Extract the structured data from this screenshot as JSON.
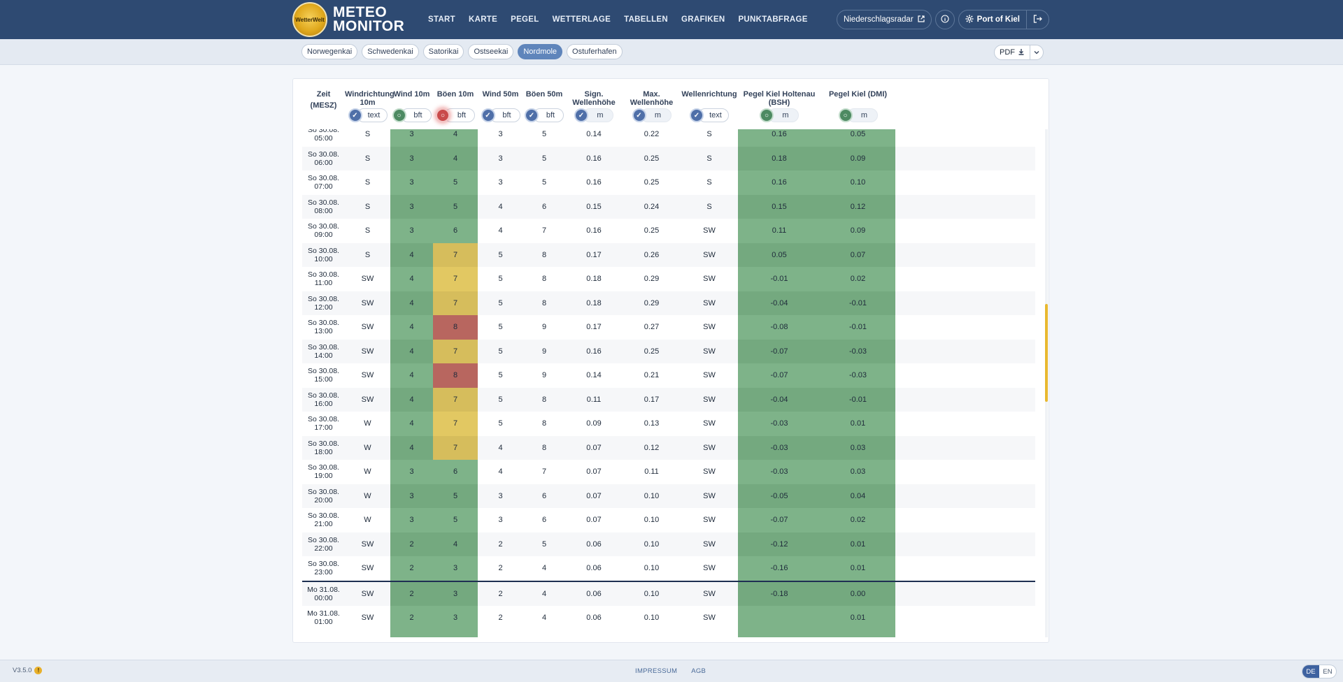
{
  "header": {
    "logo_text": "WetterWelt",
    "brand_line1": "METEO",
    "brand_line2": "MONITOR",
    "nav": [
      "START",
      "KARTE",
      "PEGEL",
      "WETTERLAGE",
      "TABELLEN",
      "GRAFIKEN",
      "PUNKTABFRAGE"
    ],
    "radar_label": "Niederschlagsradar",
    "account_label": "Port of Kiel"
  },
  "locations": {
    "tabs": [
      "Norwegenkai",
      "Schwedenkai",
      "Satorikai",
      "Ostseekai",
      "Nordmole",
      "Ostuferhafen"
    ],
    "active": "Nordmole"
  },
  "export": {
    "label": "PDF"
  },
  "table": {
    "time_header_line1": "Zeit",
    "time_header_line2": "(MESZ)",
    "columns": [
      {
        "title": "Windrichtung 10m",
        "unit": "text",
        "status": "blue"
      },
      {
        "title": "Wind 10m",
        "unit": "bft",
        "status": "green"
      },
      {
        "title": "Böen 10m",
        "unit": "bft",
        "status": "red"
      },
      {
        "title": "Wind 50m",
        "unit": "bft",
        "status": "blue"
      },
      {
        "title": "Böen 50m",
        "unit": "bft",
        "status": "blue"
      },
      {
        "title": "Sign. Wellenhöhe",
        "unit": "m",
        "status": "blue"
      },
      {
        "title": "Max. Wellenhöhe",
        "unit": "m",
        "status": "blue"
      },
      {
        "title": "Wellenrichtung",
        "unit": "text",
        "status": "blue"
      },
      {
        "title": "Pegel Kiel Holtenau (BSH)",
        "unit": "m",
        "status": "green"
      },
      {
        "title": "Pegel Kiel (DMI)",
        "unit": "m",
        "status": "green"
      }
    ],
    "rows": [
      [
        "So 30.08.",
        "05:00",
        "S",
        "3",
        "4",
        "3",
        "5",
        "0.14",
        "0.22",
        "S",
        "0.16",
        "0.05"
      ],
      [
        "So 30.08.",
        "06:00",
        "S",
        "3",
        "4",
        "3",
        "5",
        "0.16",
        "0.25",
        "S",
        "0.18",
        "0.09"
      ],
      [
        "So 30.08.",
        "07:00",
        "S",
        "3",
        "5",
        "3",
        "5",
        "0.16",
        "0.25",
        "S",
        "0.16",
        "0.10"
      ],
      [
        "So 30.08.",
        "08:00",
        "S",
        "3",
        "5",
        "4",
        "6",
        "0.15",
        "0.24",
        "S",
        "0.15",
        "0.12"
      ],
      [
        "So 30.08.",
        "09:00",
        "S",
        "3",
        "6",
        "4",
        "7",
        "0.16",
        "0.25",
        "SW",
        "0.11",
        "0.09"
      ],
      [
        "So 30.08.",
        "10:00",
        "S",
        "4",
        "7",
        "5",
        "8",
        "0.17",
        "0.26",
        "SW",
        "0.05",
        "0.07"
      ],
      [
        "So 30.08.",
        "11:00",
        "SW",
        "4",
        "7",
        "5",
        "8",
        "0.18",
        "0.29",
        "SW",
        "-0.01",
        "0.02"
      ],
      [
        "So 30.08.",
        "12:00",
        "SW",
        "4",
        "7",
        "5",
        "8",
        "0.18",
        "0.29",
        "SW",
        "-0.04",
        "-0.01"
      ],
      [
        "So 30.08.",
        "13:00",
        "SW",
        "4",
        "8",
        "5",
        "9",
        "0.17",
        "0.27",
        "SW",
        "-0.08",
        "-0.01"
      ],
      [
        "So 30.08.",
        "14:00",
        "SW",
        "4",
        "7",
        "5",
        "9",
        "0.16",
        "0.25",
        "SW",
        "-0.07",
        "-0.03"
      ],
      [
        "So 30.08.",
        "15:00",
        "SW",
        "4",
        "8",
        "5",
        "9",
        "0.14",
        "0.21",
        "SW",
        "-0.07",
        "-0.03"
      ],
      [
        "So 30.08.",
        "16:00",
        "SW",
        "4",
        "7",
        "5",
        "8",
        "0.11",
        "0.17",
        "SW",
        "-0.04",
        "-0.01"
      ],
      [
        "So 30.08.",
        "17:00",
        "W",
        "4",
        "7",
        "5",
        "8",
        "0.09",
        "0.13",
        "SW",
        "-0.03",
        "0.01"
      ],
      [
        "So 30.08.",
        "18:00",
        "W",
        "4",
        "7",
        "4",
        "8",
        "0.07",
        "0.12",
        "SW",
        "-0.03",
        "0.03"
      ],
      [
        "So 30.08.",
        "19:00",
        "W",
        "3",
        "6",
        "4",
        "7",
        "0.07",
        "0.11",
        "SW",
        "-0.03",
        "0.03"
      ],
      [
        "So 30.08.",
        "20:00",
        "W",
        "3",
        "5",
        "3",
        "6",
        "0.07",
        "0.10",
        "SW",
        "-0.05",
        "0.04"
      ],
      [
        "So 30.08.",
        "21:00",
        "W",
        "3",
        "5",
        "3",
        "6",
        "0.07",
        "0.10",
        "SW",
        "-0.07",
        "0.02"
      ],
      [
        "So 30.08.",
        "22:00",
        "SW",
        "2",
        "4",
        "2",
        "5",
        "0.06",
        "0.10",
        "SW",
        "-0.12",
        "0.01"
      ],
      [
        "So 30.08.",
        "23:00",
        "SW",
        "2",
        "3",
        "2",
        "4",
        "0.06",
        "0.10",
        "SW",
        "-0.16",
        "0.01"
      ],
      [
        "Mo 31.08.",
        "00:00",
        "SW",
        "2",
        "3",
        "2",
        "4",
        "0.06",
        "0.10",
        "SW",
        "-0.18",
        "0.00"
      ],
      [
        "Mo 31.08.",
        "01:00",
        "SW",
        "2",
        "3",
        "2",
        "4",
        "0.06",
        "0.10",
        "SW",
        "",
        "0.01"
      ]
    ]
  },
  "colors": {
    "green": "#7eb389",
    "green_alt": "#74a97f",
    "yellow": "#e2c862",
    "yellow_alt": "#d6bd5c",
    "red": "#b8665f",
    "header": "#2e4a72"
  },
  "footer": {
    "version": "V3.5.0",
    "links": [
      "IMPRESSUM",
      "AGB"
    ],
    "langs": [
      "DE",
      "EN"
    ]
  }
}
